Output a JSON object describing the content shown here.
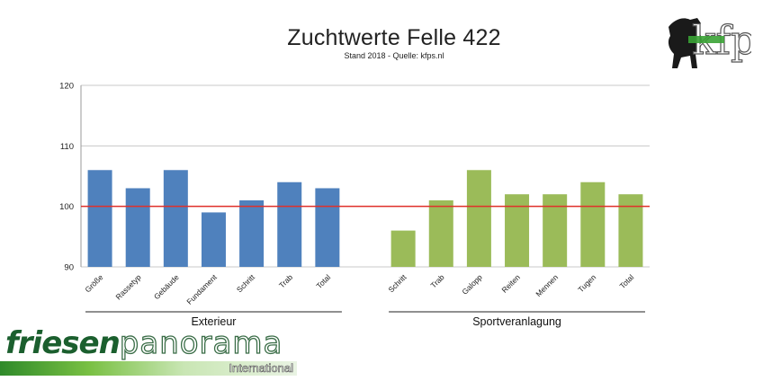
{
  "chart_data": {
    "type": "bar",
    "title": "Zuchtwerte Felle 422",
    "subtitle": "Stand 2018 - Quelle: kfps.nl",
    "ylim": [
      90,
      120
    ],
    "yticks": [
      90,
      100,
      110,
      120
    ],
    "reference_line": 100,
    "grid": true,
    "groups": [
      {
        "name": "Exterieur",
        "color": "#4f81bd",
        "categories": [
          "Größe",
          "Rassetyp",
          "Gebäude",
          "Fundament",
          "Schritt",
          "Trab",
          "Total"
        ],
        "values": [
          106,
          103,
          106,
          99,
          101,
          104,
          103
        ]
      },
      {
        "name": "Sportveranlagung",
        "color": "#9bbb59",
        "categories": [
          "Schritt",
          "Trab",
          "Galopp",
          "Reiten",
          "Mennen",
          "Tugen",
          "Total"
        ],
        "values": [
          96,
          101,
          106,
          102,
          102,
          104,
          102
        ]
      }
    ],
    "reference_color": "#e0302a"
  },
  "logos": {
    "kfp_text": "kfp",
    "footer_word_1": "friesen",
    "footer_word_2": "panorama",
    "footer_sub": "International"
  }
}
